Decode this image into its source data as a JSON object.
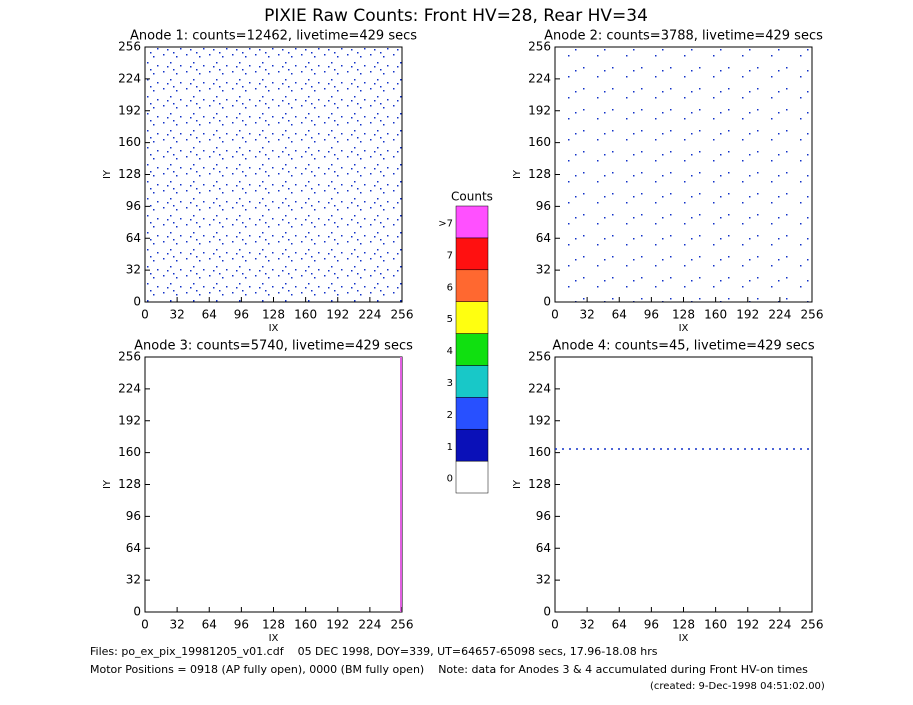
{
  "title": "PIXIE Raw Counts:  Front HV=28, Rear HV=34",
  "chart_data": [
    {
      "type": "heatmap",
      "title": "Anode 1: counts=12462, livetime=429 secs",
      "x_label": "IX",
      "y_label": "IY",
      "xlim": [
        0,
        256
      ],
      "ylim": [
        0,
        256
      ],
      "xticks": [
        0,
        32,
        64,
        96,
        128,
        160,
        192,
        224,
        256
      ],
      "yticks": [
        0,
        32,
        64,
        96,
        128,
        160,
        192,
        224,
        256
      ]
    },
    {
      "type": "heatmap",
      "title": "Anode 2: counts=3788, livetime=429 secs",
      "x_label": "IX",
      "y_label": "IY",
      "xlim": [
        0,
        256
      ],
      "ylim": [
        0,
        256
      ],
      "xticks": [
        0,
        32,
        64,
        96,
        128,
        160,
        192,
        224,
        256
      ],
      "yticks": [
        0,
        32,
        64,
        96,
        128,
        160,
        192,
        224,
        256
      ]
    },
    {
      "type": "heatmap",
      "title": "Anode 3: counts=5740, livetime=429 secs",
      "x_label": "IX",
      "y_label": "IY",
      "xlim": [
        0,
        256
      ],
      "ylim": [
        0,
        256
      ],
      "xticks": [
        0,
        32,
        64,
        96,
        128,
        160,
        192,
        224,
        256
      ],
      "yticks": [
        0,
        32,
        64,
        96,
        128,
        160,
        192,
        224,
        256
      ]
    },
    {
      "type": "heatmap",
      "title": "Anode 4: counts=45, livetime=429 secs",
      "x_label": "IX",
      "y_label": "IY",
      "xlim": [
        0,
        256
      ],
      "ylim": [
        0,
        256
      ],
      "xticks": [
        0,
        32,
        64,
        96,
        128,
        160,
        192,
        224,
        256
      ],
      "yticks": [
        0,
        32,
        64,
        96,
        128,
        160,
        192,
        224,
        256
      ]
    }
  ],
  "colorbar": {
    "title": "Counts",
    "labels": [
      "0",
      "1",
      "2",
      "3",
      "4",
      "5",
      "6",
      "7",
      ">7"
    ],
    "colors": [
      "#ffffff",
      "#0a10b8",
      "#2850ff",
      "#18c8c8",
      "#10e010",
      "#ffff10",
      "#ff6830",
      "#ff1010",
      "#ff50ff"
    ]
  },
  "footer": {
    "files": "Files: po_ex_pix_19981205_v01.cdf    05 DEC 1998, DOY=339, UT=64657-65098 secs, 17.96-18.08 hrs",
    "motor": "Motor Positions = 0918 (AP fully open), 0000 (BM fully open)    Note: data for Anodes 3 & 4 accumulated during Front HV-on times",
    "created": "(created:  9-Dec-1998 04:51:02.00)"
  }
}
